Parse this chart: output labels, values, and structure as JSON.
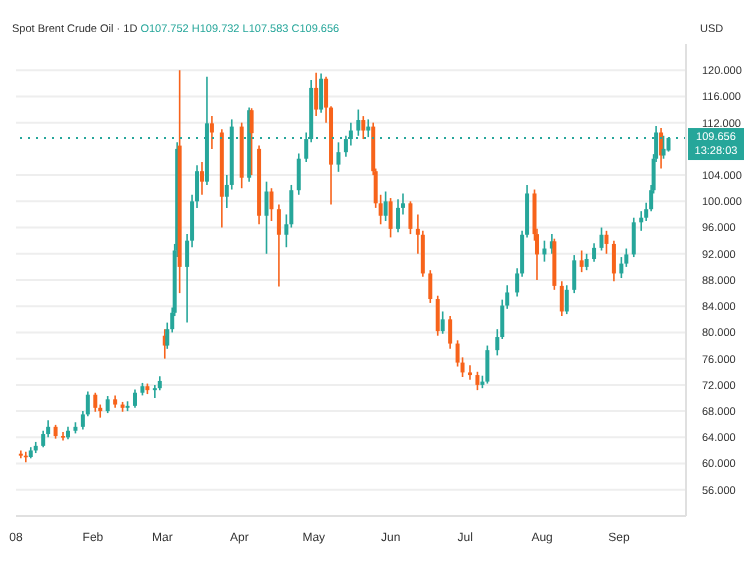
{
  "chart_data": {
    "type": "candlestick",
    "title": "Spot Brent Crude Oil · 1D",
    "subtitle": "O107.752 H109.732 L107.583 C109.656",
    "ylabel": "USD",
    "colors": [
      "#f7631b",
      "#f7631b",
      "#26a69a",
      "#26a69a",
      "#26a69a",
      "#26a69a",
      "#f7631b",
      "#f7631b",
      "#26a69a",
      "#26a69a",
      "#26a69a",
      "#26a69a",
      "#f7631b",
      "#f7631b",
      "#26a69a",
      "#f7631b",
      "#f7631b",
      "#26a69a",
      "#26a69a",
      "#26a69a",
      "#f7631b",
      "#26a69a",
      "#26a69a",
      "#f7631b",
      "#26a69a",
      "#26a69a",
      "#26a69a",
      "#26a69a",
      "#f7631b",
      "#26a69a",
      "#26a69a",
      "#26a69a",
      "#f7631b",
      "#26a69a",
      "#f7631b",
      "#f7631b",
      "#26a69a",
      "#26a69a",
      "#f7631b",
      "#26a69a",
      "#f7631b",
      "#f7631b",
      "#26a69a",
      "#f7631b",
      "#f7631b",
      "#26a69a",
      "#26a69a",
      "#26a69a",
      "#26a69a",
      "#26a69a",
      "#f7631b",
      "#26a69a",
      "#f7631b",
      "#f7631b",
      "#26a69a",
      "#26a69a",
      "#26a69a",
      "#26a69a",
      "#f7631b",
      "#26a69a",
      "#f7631b",
      "#f7631b",
      "#f7631b",
      "#26a69a",
      "#f7631b",
      "#26a69a",
      "#26a69a",
      "#f7631b",
      "#f7631b",
      "#f7631b",
      "#f7631b",
      "#f7631b",
      "#26a69a",
      "#f7631b",
      "#f7631b",
      "#f7631b",
      "#f7631b",
      "#f7631b",
      "#26a69a",
      "#26a69a",
      "#26a69a",
      "#26a69a",
      "#26a69a",
      "#26a69a",
      "#26a69a",
      "#26a69a",
      "#f7631b",
      "#f7631b",
      "#26a69a",
      "#26a69a",
      "#f7631b",
      "#f7631b",
      "#26a69a",
      "#26a69a",
      "#f7631b",
      "#26a69a",
      "#26a69a",
      "#26a69a",
      "#f7631b",
      "#f7631b",
      "#26a69a",
      "#26a69a",
      "#26a69a",
      "#26a69a",
      "#26a69a",
      "#26a69a",
      "#26a69a",
      "#26a69a",
      "#f7631b",
      "#26a69a",
      "#26a69a"
    ],
    "x": [
      "--01-03",
      "--01-05",
      "--01-07",
      "--01-09",
      "--01-12",
      "--01-14",
      "--01-17",
      "--01-20",
      "--01-22",
      "--01-25",
      "--01-28",
      "--01-30",
      "--02-02",
      "--02-04",
      "--02-07",
      "--02-10",
      "--02-13",
      "--02-15",
      "--02-18",
      "--02-21",
      "--02-23",
      "--02-26",
      "--02-28",
      "--03-02",
      "--03-03",
      "--03-05",
      "--03-06",
      "--03-07",
      "--03-08",
      "--03-11",
      "--03-13",
      "--03-15",
      "--03-17",
      "--03-19",
      "--03-21",
      "--03-25",
      "--03-27",
      "--03-29",
      "--04-02",
      "--04-05",
      "--04-06",
      "--04-09",
      "--04-12",
      "--04-14",
      "--04-17",
      "--04-20",
      "--04-22",
      "--04-25",
      "--04-28",
      "--04-30",
      "--05-02",
      "--05-04",
      "--05-06",
      "--05-08",
      "--05-11",
      "--05-14",
      "--05-16",
      "--05-19",
      "--05-21",
      "--05-23",
      "--05-25",
      "--05-26",
      "--05-28",
      "--05-30",
      "--06-01",
      "--06-04",
      "--06-06",
      "--06-09",
      "--06-12",
      "--06-14",
      "--06-17",
      "--06-20",
      "--06-22",
      "--06-25",
      "--06-28",
      "--06-30",
      "--07-03",
      "--07-06",
      "--07-08",
      "--07-10",
      "--07-14",
      "--07-16",
      "--07-18",
      "--07-22",
      "--07-24",
      "--07-26",
      "--07-29",
      "--07-30",
      "--08-02",
      "--08-05",
      "--08-06",
      "--08-09",
      "--08-11",
      "--08-14",
      "--08-17",
      "--08-19",
      "--08-22",
      "--08-25",
      "--08-27",
      "--08-30",
      "--09-02",
      "--09-04",
      "--09-07",
      "--09-10",
      "--09-12",
      "--09-14",
      "--09-15",
      "--09-16",
      "--09-18",
      "--09-19",
      "--09-21"
    ],
    "ohlc": [
      [
        61.5,
        62.0,
        60.8,
        61.2
      ],
      [
        61.2,
        61.8,
        60.2,
        61.0
      ],
      [
        61.0,
        62.5,
        60.8,
        62.0
      ],
      [
        62.0,
        63.3,
        61.6,
        62.7
      ],
      [
        62.7,
        65.0,
        62.5,
        64.5
      ],
      [
        64.5,
        66.6,
        64.0,
        65.6
      ],
      [
        65.6,
        65.9,
        63.8,
        64.2
      ],
      [
        64.2,
        64.8,
        63.5,
        64.0
      ],
      [
        64.0,
        65.6,
        63.7,
        65.0
      ],
      [
        65.0,
        66.3,
        64.6,
        65.6
      ],
      [
        65.6,
        68.0,
        65.2,
        67.5
      ],
      [
        67.5,
        71.0,
        67.2,
        70.5
      ],
      [
        70.5,
        70.8,
        67.9,
        68.5
      ],
      [
        68.5,
        69.0,
        67.0,
        68.0
      ],
      [
        68.0,
        70.3,
        67.7,
        69.8
      ],
      [
        69.8,
        70.4,
        68.5,
        69.0
      ],
      [
        69.0,
        69.4,
        67.9,
        68.5
      ],
      [
        68.5,
        69.5,
        68.0,
        68.8
      ],
      [
        68.8,
        71.3,
        68.5,
        70.8
      ],
      [
        70.8,
        72.3,
        70.4,
        71.8
      ],
      [
        71.8,
        72.2,
        70.6,
        71.2
      ],
      [
        71.2,
        72.0,
        70.0,
        71.5
      ],
      [
        71.5,
        73.3,
        71.2,
        72.6
      ],
      [
        79.5,
        80.5,
        76.0,
        78.0
      ],
      [
        78.0,
        81.5,
        77.5,
        80.5
      ],
      [
        80.5,
        83.8,
        80.0,
        83.0
      ],
      [
        83.0,
        93.5,
        82.5,
        92.5
      ],
      [
        92.5,
        109.0,
        91.5,
        108.0
      ],
      [
        108.5,
        120.0,
        86.0,
        90.0
      ],
      [
        90.0,
        95.0,
        81.5,
        94.0
      ],
      [
        94.0,
        101.0,
        93.0,
        100.0
      ],
      [
        100.0,
        105.5,
        99.0,
        104.6
      ],
      [
        104.6,
        106.0,
        101.0,
        103.0
      ],
      [
        103.0,
        119.0,
        102.5,
        111.9
      ],
      [
        111.9,
        113.0,
        108.0,
        110.5
      ],
      [
        110.5,
        111.0,
        96.0,
        100.7
      ],
      [
        100.7,
        104.0,
        99.0,
        102.5
      ],
      [
        102.5,
        112.5,
        101.8,
        111.4
      ],
      [
        111.4,
        112.0,
        102.0,
        103.6
      ],
      [
        103.6,
        114.3,
        103.0,
        113.9
      ],
      [
        113.9,
        114.2,
        104.0,
        110.4
      ],
      [
        108.0,
        108.5,
        96.5,
        97.8
      ],
      [
        97.8,
        103.0,
        92.0,
        101.5
      ],
      [
        101.5,
        102.0,
        97.0,
        98.8
      ],
      [
        98.8,
        99.5,
        87.0,
        94.9
      ],
      [
        94.9,
        98.0,
        93.0,
        96.5
      ],
      [
        96.5,
        102.5,
        96.0,
        101.7
      ],
      [
        101.7,
        107.3,
        101.0,
        106.5
      ],
      [
        106.5,
        110.5,
        106.0,
        109.5
      ],
      [
        109.5,
        118.5,
        109.0,
        117.3
      ],
      [
        117.3,
        119.6,
        113.0,
        114.0
      ],
      [
        114.0,
        119.5,
        113.5,
        118.7
      ],
      [
        118.7,
        119.0,
        112.0,
        114.3
      ],
      [
        114.3,
        114.5,
        99.5,
        105.6
      ],
      [
        105.6,
        109.0,
        104.5,
        107.5
      ],
      [
        107.5,
        110.0,
        106.8,
        109.5
      ],
      [
        109.5,
        112.0,
        108.5,
        110.8
      ],
      [
        110.8,
        114.0,
        110.0,
        112.4
      ],
      [
        112.4,
        113.0,
        109.5,
        110.8
      ],
      [
        110.8,
        112.5,
        109.8,
        111.4
      ],
      [
        111.4,
        112.0,
        104.0,
        104.6
      ],
      [
        104.6,
        105.0,
        99.0,
        99.7
      ],
      [
        99.7,
        101.0,
        96.5,
        97.8
      ],
      [
        97.8,
        101.5,
        97.0,
        100.0
      ],
      [
        100.0,
        100.5,
        94.5,
        95.8
      ],
      [
        95.8,
        100.3,
        95.3,
        99.0
      ],
      [
        99.0,
        101.2,
        98.0,
        99.7
      ],
      [
        99.7,
        100.0,
        95.0,
        95.8
      ],
      [
        95.8,
        98.0,
        92.0,
        94.9
      ],
      [
        94.9,
        95.5,
        88.5,
        89.0
      ],
      [
        89.0,
        89.5,
        84.5,
        85.1
      ],
      [
        85.1,
        85.6,
        79.5,
        80.2
      ],
      [
        80.2,
        83.2,
        79.8,
        82.0
      ],
      [
        82.0,
        82.5,
        77.5,
        78.3
      ],
      [
        78.3,
        78.8,
        74.8,
        75.4
      ],
      [
        75.4,
        76.2,
        73.2,
        73.9
      ],
      [
        73.9,
        75.0,
        72.8,
        73.5
      ],
      [
        73.5,
        74.0,
        71.2,
        72.0
      ],
      [
        72.0,
        73.4,
        71.5,
        72.5
      ],
      [
        72.5,
        78.0,
        72.2,
        77.3
      ],
      [
        77.3,
        80.5,
        76.5,
        79.3
      ],
      [
        79.3,
        85.0,
        79.0,
        84.1
      ],
      [
        84.1,
        87.2,
        83.6,
        86.1
      ],
      [
        86.1,
        89.8,
        85.5,
        89.0
      ],
      [
        89.0,
        95.5,
        88.5,
        94.9
      ],
      [
        94.9,
        102.5,
        94.5,
        101.2
      ],
      [
        101.2,
        101.8,
        94.0,
        95.0
      ],
      [
        95.0,
        95.8,
        88.0,
        91.9
      ],
      [
        91.9,
        94.0,
        90.8,
        92.8
      ],
      [
        92.8,
        95.0,
        92.0,
        93.9
      ],
      [
        93.9,
        94.3,
        86.5,
        87.1
      ],
      [
        87.1,
        87.8,
        82.5,
        83.2
      ],
      [
        83.2,
        87.2,
        82.8,
        86.5
      ],
      [
        86.5,
        91.8,
        86.0,
        91.0
      ],
      [
        91.0,
        92.5,
        89.2,
        90.0
      ],
      [
        90.0,
        92.0,
        89.5,
        91.2
      ],
      [
        91.2,
        93.6,
        90.8,
        92.9
      ],
      [
        92.9,
        96.0,
        92.5,
        94.9
      ],
      [
        94.9,
        95.5,
        92.0,
        93.5
      ],
      [
        93.5,
        94.0,
        87.8,
        89.0
      ],
      [
        89.0,
        91.5,
        88.3,
        90.5
      ],
      [
        90.5,
        92.8,
        90.0,
        91.9
      ],
      [
        91.9,
        97.5,
        91.5,
        96.8
      ],
      [
        96.8,
        98.5,
        95.5,
        97.5
      ],
      [
        97.5,
        99.8,
        97.0,
        98.8
      ],
      [
        98.8,
        102.5,
        98.5,
        101.7
      ],
      [
        101.7,
        107.2,
        101.2,
        106.5
      ],
      [
        106.5,
        111.5,
        106.0,
        110.5
      ],
      [
        110.5,
        111.2,
        105.0,
        107.0
      ],
      [
        107.0,
        110.0,
        106.5,
        108.0
      ],
      [
        107.752,
        109.732,
        107.583,
        109.656
      ]
    ],
    "xlim": [
      "--01-01",
      "--09-28"
    ],
    "xticks": [
      {
        "value": "--01-01",
        "label": "08"
      },
      {
        "value": "--02-01",
        "label": "Feb"
      },
      {
        "value": "--03-01",
        "label": "Mar"
      },
      {
        "value": "--04-01",
        "label": "Apr"
      },
      {
        "value": "--05-01",
        "label": "May"
      },
      {
        "value": "--06-01",
        "label": "Jun"
      },
      {
        "value": "--07-01",
        "label": "Jul"
      },
      {
        "value": "--08-01",
        "label": "Aug"
      },
      {
        "value": "--09-01",
        "label": "Sep"
      }
    ],
    "ylim": [
      52,
      124
    ],
    "yticks": [
      {
        "value": 56,
        "label": "56.000"
      },
      {
        "value": 60,
        "label": "60.000"
      },
      {
        "value": 64,
        "label": "64.000"
      },
      {
        "value": 68,
        "label": "68.000"
      },
      {
        "value": 72,
        "label": "72.000"
      },
      {
        "value": 76,
        "label": "76.000"
      },
      {
        "value": 80,
        "label": "80.000"
      },
      {
        "value": 84,
        "label": "84.000"
      },
      {
        "value": 88,
        "label": "88.000"
      },
      {
        "value": 92,
        "label": "92.000"
      },
      {
        "value": 96,
        "label": "96.000"
      },
      {
        "value": 100,
        "label": "100.000"
      },
      {
        "value": 104,
        "label": "104.000"
      },
      {
        "value": 112,
        "label": "112.000"
      },
      {
        "value": 116,
        "label": "116.000"
      },
      {
        "value": 120,
        "label": "120.000"
      }
    ],
    "grid": "y",
    "ref_lines": [
      {
        "axis": "y",
        "value": 109.656,
        "label": "109.656",
        "color": "#26a69a",
        "line_style": "dotted"
      }
    ],
    "annotations": [
      "13:28:03"
    ]
  }
}
